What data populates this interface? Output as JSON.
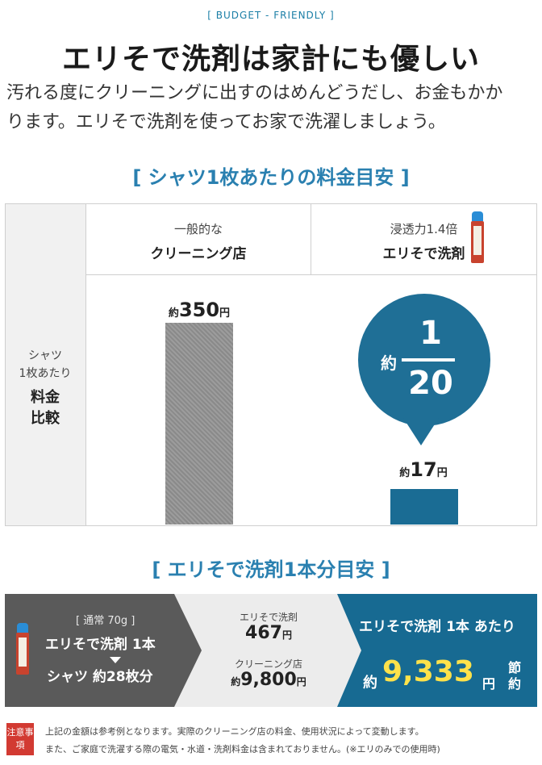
{
  "eyebrow": "[ BUDGET - FRIENDLY ]",
  "hero_title": "エリそで洗剤は家計にも優しい",
  "lead_line1": "汚れる度にクリーニングに出すのはめんどうだし、お金もかか",
  "lead_line2": "ります。エリそで洗剤を使ってお家で洗濯しましょう。",
  "section1_title": "[ シャツ1枚あたりの料金目安 ]",
  "comparison": {
    "col_a_sub": "一般的な",
    "col_a_main": "クリーニング店",
    "col_b_sub": "浸透力1.4倍",
    "col_b_main": "エリそで洗剤",
    "row_sub1": "シャツ",
    "row_sub2": "1枚あたり",
    "row_main1": "料金",
    "row_main2": "比較",
    "bar_a": {
      "prefix": "約",
      "value": "350",
      "unit": "円",
      "amount": 350
    },
    "bar_b": {
      "prefix": "約",
      "value": "17",
      "unit": "円",
      "amount": 17
    },
    "bubble": {
      "prefix": "約",
      "numerator": "1",
      "denominator": "20"
    }
  },
  "section2_title": "[ エリそで洗剤1本分目安 ]",
  "usage": {
    "note": "[ 通常 70g ]",
    "main": "エリそで洗剤 1本",
    "sub": "シャツ 約28枚分",
    "mid_label1": "エリそで洗剤",
    "mid_value1": "467",
    "mid_unit1": "円",
    "mid_label2": "クリーニング店",
    "mid_prefix2": "約",
    "mid_value2": "9,800",
    "mid_unit2": "円",
    "right_title": "エリそで洗剤 1本 あたり",
    "right_prefix": "約",
    "right_value": "9,333",
    "right_unit": "円",
    "right_tag": "節約"
  },
  "notes": {
    "badge": "注意事項",
    "line1": "上記の金額は参考例となります。実際のクリーニング店の料金、使用状況によって変動します。",
    "line2": "また、ご家庭で洗濯する際の電気・水道・洗剤料金は含まれておりません。(※エリのみでの使用時)"
  },
  "colors": {
    "accent_blue": "#2a80b0",
    "dark_blue": "#176a92",
    "highlight_yellow": "#ffe24a",
    "warning_red": "#d23a32"
  }
}
